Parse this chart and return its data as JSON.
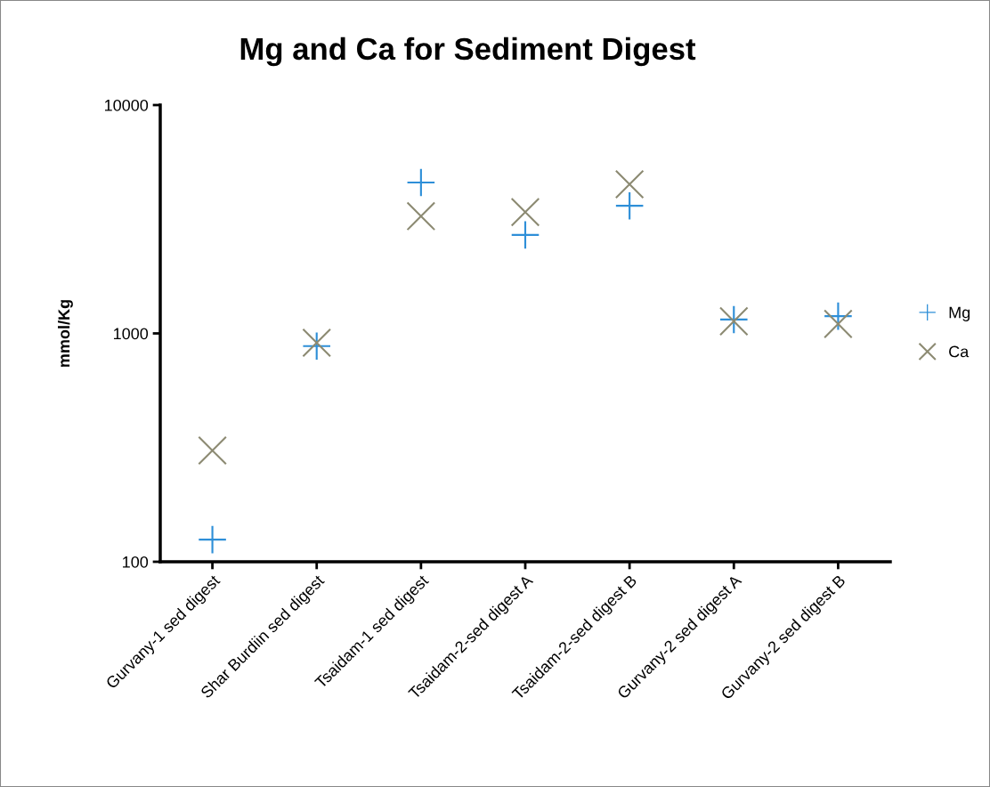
{
  "chart_data": {
    "type": "scatter",
    "title": "Mg and Ca for Sediment Digest",
    "ylabel": "mmol/Kg",
    "categories": [
      "Gurvany-1 sed digest",
      "Shar Burdiin sed digest",
      "Tsaidam-1 sed digest",
      "Tsaidam-2-sed digest A",
      "Tsaidam-2-sed digest B",
      "Gurvany-2 sed digest A",
      "Gurvany-2 sed digest B"
    ],
    "series": [
      {
        "name": "Mg",
        "color": "#2e8fd8",
        "marker": "plus",
        "values": [
          125,
          880,
          4580,
          2700,
          3620,
          1150,
          1190
        ]
      },
      {
        "name": "Ca",
        "color": "#8c8a72",
        "marker": "cross",
        "values": [
          307,
          910,
          3260,
          3400,
          4500,
          1130,
          1100
        ]
      }
    ],
    "log": "y",
    "ylim": [
      100,
      10000
    ],
    "yticks": [
      100,
      1000,
      10000
    ],
    "grid": false,
    "legend": "right"
  }
}
